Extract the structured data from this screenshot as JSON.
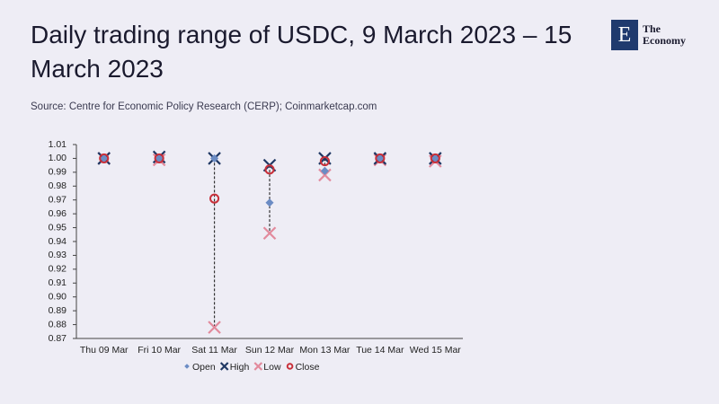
{
  "chart_data": {
    "type": "range",
    "title": "Daily trading range of USDC, 9 March 2023 – 15 March 2023",
    "source": "Source: Centre for Economic Policy Research (CERP); Coinmarketcap.com",
    "categories": [
      "Thu 09 Mar",
      "Fri 10 Mar",
      "Sat 11 Mar",
      "Sun 12 Mar",
      "Mon 13 Mar",
      "Tue 14 Mar",
      "Wed 15 Mar"
    ],
    "series": [
      {
        "name": "Open",
        "color": "#6b8cc4",
        "marker": "diamond",
        "values": [
          1.0,
          1.0,
          1.0,
          0.968,
          0.991,
          1.0,
          1.0
        ]
      },
      {
        "name": "High",
        "color": "#1f3864",
        "marker": "x",
        "values": [
          1.0,
          1.001,
          1.0,
          0.995,
          1.0,
          1.0,
          1.0
        ]
      },
      {
        "name": "Low",
        "color": "#e28a9c",
        "marker": "x",
        "values": [
          1.0,
          0.999,
          0.878,
          0.946,
          0.988,
          0.999,
          0.998
        ]
      },
      {
        "name": "Close",
        "color": "#c8303a",
        "marker": "circle",
        "values": [
          1.0,
          1.0,
          0.971,
          0.992,
          0.998,
          1.0,
          1.0
        ]
      }
    ],
    "ylim": [
      0.87,
      1.01
    ],
    "yticks": [
      1.01,
      {
        "value": 1.0,
        "label": "1.00"
      },
      0.99,
      0.98,
      0.97,
      0.96,
      0.95,
      0.94,
      0.93,
      0.92,
      0.91,
      {
        "value": 0.9,
        "label": "0.90"
      },
      0.89,
      0.88,
      0.87
    ],
    "grid": false
  },
  "logo": {
    "mark": "E",
    "name": [
      "The",
      "Economy"
    ]
  }
}
